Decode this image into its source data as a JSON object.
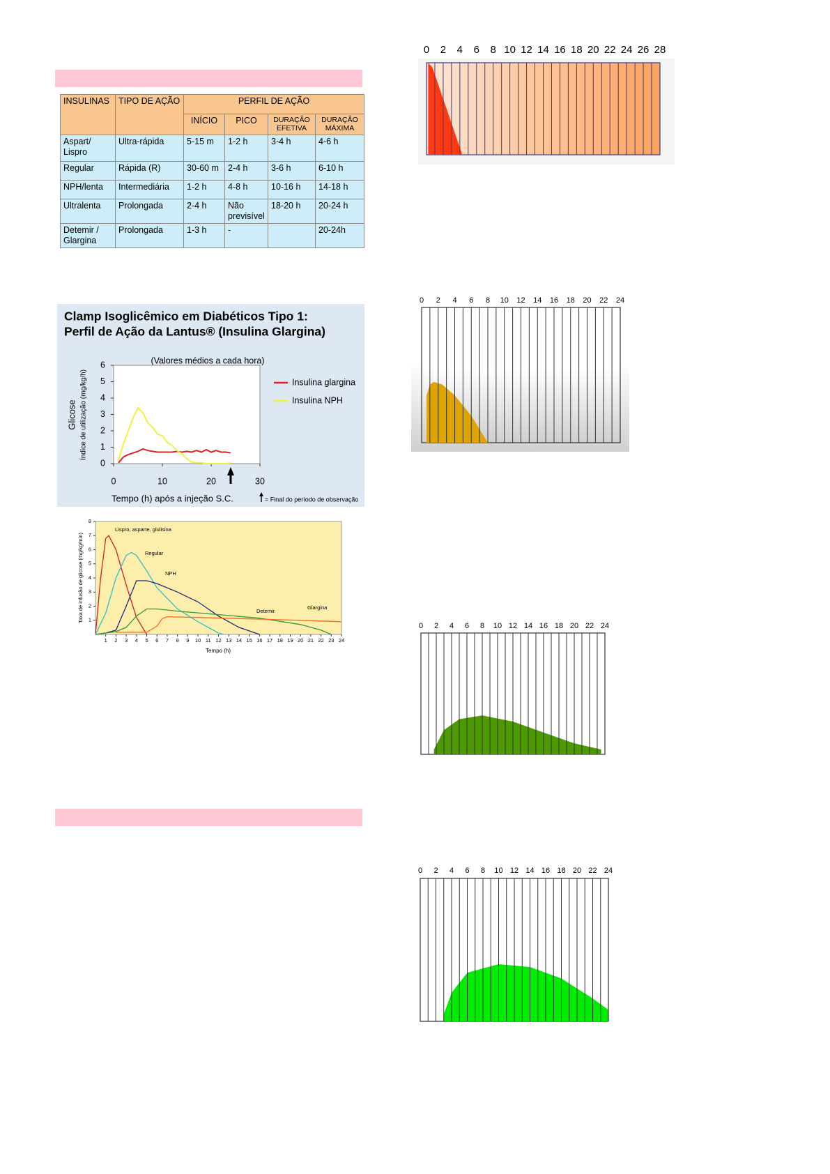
{
  "table": {
    "header": [
      "INSULINAS",
      "TIPO DE AÇÃO",
      "PERFIL DE AÇÃO"
    ],
    "subheader": [
      "INÍCIO",
      "PICO",
      "DURAÇÃO EFETIVA",
      "DURAÇÃO MÁXIMA"
    ],
    "rows": [
      [
        "Aspart/ Lispro",
        "Ultra-rápida",
        "5-15 m",
        "1-2 h",
        "3-4 h",
        "4-6 h"
      ],
      [
        "Regular",
        "Rápida (R)",
        "30-60 m",
        "2-4 h",
        "3-6 h",
        "6-10 h"
      ],
      [
        "NPH/lenta",
        "Intermediária",
        "1-2 h",
        "4-8 h",
        "10-16 h",
        "14-18 h"
      ],
      [
        "Ultralenta",
        "Prolongada",
        "2-4 h",
        "Não previsível",
        "18-20 h",
        "20-24 h"
      ],
      [
        "Detemir / Glargina",
        "Prolongada",
        "1-3 h",
        "-",
        null,
        "20-24h"
      ]
    ]
  },
  "chart_data": [
    {
      "type": "line",
      "title": [
        "Clamp Isoglicêmico em  Diabéticos Tipo 1:",
        "Perfil de Ação da Lantus® (Insulina Glargina)"
      ],
      "subtitle": "(Valores médios a cada hora)",
      "ylabel": [
        "Glicose",
        "Índice de utilização  (mg/kg/h)"
      ],
      "xlabel": "Tempo (h) após a injeção S.C.",
      "annotation": {
        "x": 24,
        "text": "= Final do período de observação"
      },
      "xlim": [
        0,
        30
      ],
      "ylim": [
        0,
        6
      ],
      "xticks": [
        0,
        10,
        20,
        30
      ],
      "yticks": [
        0,
        1,
        2,
        3,
        4,
        5,
        6
      ],
      "series": [
        {
          "name": "Insulina glargina",
          "color": "#e02020",
          "x": [
            1,
            2,
            3,
            4,
            5,
            6,
            7,
            8,
            9,
            10,
            11,
            12,
            13,
            14,
            15,
            16,
            17,
            18,
            19,
            20,
            21,
            22,
            23,
            24
          ],
          "values": [
            0.05,
            0.4,
            0.55,
            0.65,
            0.75,
            0.9,
            0.8,
            0.75,
            0.7,
            0.7,
            0.7,
            0.7,
            0.75,
            0.7,
            0.75,
            0.7,
            0.8,
            0.7,
            0.85,
            0.7,
            0.8,
            0.7,
            0.7,
            0.65
          ]
        },
        {
          "name": "Insulina NPH",
          "color": "#f2f23a",
          "x": [
            1,
            2,
            3,
            4,
            5,
            6,
            7,
            8,
            9,
            10,
            11,
            12,
            13,
            14,
            15,
            16,
            17,
            18,
            19,
            20,
            21,
            22,
            23,
            24
          ],
          "values": [
            0.2,
            1.2,
            2,
            2.8,
            3.4,
            3.1,
            2.5,
            2.2,
            1.8,
            1.7,
            1.3,
            1.1,
            0.8,
            0.6,
            0.3,
            0.1,
            0.05,
            0.05,
            0,
            0,
            0,
            0,
            0,
            0.05
          ]
        }
      ]
    },
    {
      "type": "line",
      "ylabel": "Taxa de infusão de glicose (mg/kg/min)",
      "xlabel": "Tempo (h)",
      "xlim": [
        0,
        24
      ],
      "ylim": [
        0,
        8
      ],
      "xticks": [
        1,
        2,
        3,
        4,
        5,
        6,
        7,
        8,
        9,
        10,
        11,
        12,
        13,
        14,
        15,
        16,
        17,
        18,
        19,
        20,
        21,
        22,
        23,
        24
      ],
      "yticks": [
        1,
        2,
        3,
        4,
        5,
        6,
        7,
        8
      ],
      "series": [
        {
          "name": "Lispro, asparte, glulisina",
          "color": "#c8202a",
          "x": [
            0,
            0.5,
            1,
            1.3,
            2,
            3,
            4,
            5
          ],
          "values": [
            0,
            4,
            6.8,
            7,
            6,
            3.5,
            1.2,
            0
          ]
        },
        {
          "name": "Regular",
          "color": "#2fc0d0",
          "x": [
            0,
            1,
            2,
            3,
            3.5,
            4,
            5,
            6,
            8,
            10,
            12,
            12.5
          ],
          "values": [
            0,
            1.5,
            4,
            5.6,
            5.8,
            5.6,
            4.5,
            3.3,
            1.8,
            0.9,
            0.1,
            0
          ]
        },
        {
          "name": "NPH",
          "color": "#1e2a78",
          "x": [
            0,
            1,
            2,
            3,
            4,
            5,
            6,
            8,
            10,
            12,
            14,
            16
          ],
          "values": [
            0,
            0.1,
            0.3,
            2,
            3.8,
            3.8,
            3.6,
            3,
            2.3,
            1.3,
            0.5,
            0
          ]
        },
        {
          "name": "Detemir",
          "color": "#2f9a3a",
          "x": [
            0,
            1,
            2,
            3,
            4,
            5,
            6,
            8,
            12,
            16,
            20,
            22,
            23
          ],
          "values": [
            0,
            0.1,
            0.2,
            0.5,
            1.3,
            1.8,
            1.8,
            1.65,
            1.4,
            1.15,
            0.7,
            0.3,
            0
          ]
        },
        {
          "name": "Glargina",
          "color": "#f07020",
          "x": [
            2,
            4,
            5,
            6,
            6.5,
            7,
            10,
            15,
            20,
            24
          ],
          "values": [
            0.15,
            0.15,
            0.15,
            0.6,
            1.1,
            1.25,
            1.2,
            1.1,
            1.0,
            0.9
          ]
        }
      ]
    },
    {
      "type": "area",
      "color": "#ff3a10",
      "xlim": [
        0,
        28
      ],
      "ylim": [
        0,
        100
      ],
      "xticks": [
        0,
        2,
        4,
        6,
        8,
        10,
        12,
        14,
        16,
        18,
        20,
        22,
        24,
        26,
        28
      ],
      "minor_xticks": [
        1,
        3,
        5,
        7,
        9,
        11,
        13,
        15,
        17,
        19,
        21,
        23,
        25,
        27
      ],
      "x": [
        0.2,
        0.7,
        4.3
      ],
      "values": [
        100,
        95,
        0
      ]
    },
    {
      "type": "area",
      "color": "#e0a400",
      "xlim": [
        0,
        24
      ],
      "ylim": [
        0,
        100
      ],
      "xticks": [
        0,
        2,
        4,
        6,
        8,
        10,
        12,
        14,
        16,
        18,
        20,
        22,
        24
      ],
      "minor_xticks": [
        1,
        3,
        5,
        7,
        9,
        11,
        13,
        15,
        17,
        19,
        21,
        23
      ],
      "x": [
        0.6,
        1,
        1.5,
        2.5,
        4,
        6,
        8
      ],
      "values": [
        35,
        43,
        45,
        43,
        35,
        20,
        0
      ]
    },
    {
      "type": "area",
      "color": "#4d9a00",
      "xlim": [
        0,
        24
      ],
      "ylim": [
        0,
        100
      ],
      "xticks": [
        0,
        2,
        4,
        6,
        8,
        10,
        12,
        14,
        16,
        18,
        20,
        22,
        24
      ],
      "minor_xticks": [
        1,
        3,
        5,
        7,
        9,
        11,
        13,
        15,
        17,
        19,
        21,
        23
      ],
      "x": [
        1.7,
        3,
        5,
        8,
        12,
        16,
        20,
        23.5
      ],
      "values": [
        4,
        20,
        29,
        32,
        27,
        18,
        9,
        4
      ]
    },
    {
      "type": "area",
      "color": "#00ec00",
      "xlim": [
        0,
        24
      ],
      "ylim": [
        0,
        100
      ],
      "xticks": [
        0,
        2,
        4,
        6,
        8,
        10,
        12,
        14,
        16,
        18,
        20,
        22,
        24
      ],
      "minor_xticks": [
        1,
        3,
        5,
        7,
        9,
        11,
        13,
        15,
        17,
        19,
        21,
        23
      ],
      "x": [
        3,
        4,
        6,
        10,
        14,
        18,
        22,
        24
      ],
      "values": [
        5,
        20,
        34,
        40,
        38,
        30,
        16,
        8
      ]
    }
  ]
}
